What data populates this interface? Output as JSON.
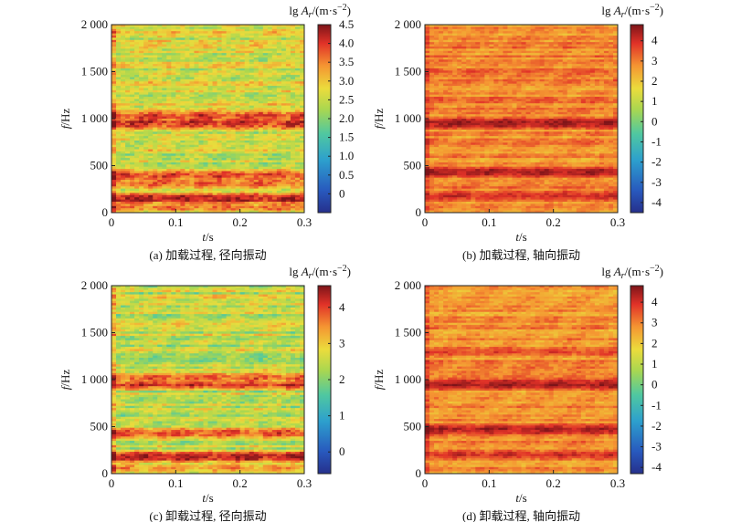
{
  "chart_data": [
    {
      "type": "heatmap",
      "caption": "(a) 加载过程, 径向振动",
      "xlabel": "t/s",
      "ylabel": "f/Hz",
      "xlim": [
        0,
        0.3
      ],
      "ylim": [
        0,
        2000
      ],
      "xticks": [
        "0",
        "0.1",
        "0.2",
        "0.3"
      ],
      "yticks": [
        "0",
        "500",
        "1 000",
        "1 500",
        "2 000"
      ],
      "colorbar_title": "lg Ar/(m·s⁻²)",
      "colorbar_range": [
        -0.5,
        4.5
      ],
      "colorbar_ticks": [
        "0",
        "0.5",
        "1.0",
        "1.5",
        "2.0",
        "2.5",
        "3.0",
        "3.5",
        "4.0",
        "4.5"
      ],
      "base_level": 2.6,
      "bands": [
        {
          "f": 950,
          "level": 4.1
        },
        {
          "f": 1030,
          "level": 3.9
        },
        {
          "f": 400,
          "level": 3.9
        },
        {
          "f": 310,
          "level": 3.7
        },
        {
          "f": 150,
          "level": 4.2
        },
        {
          "f": 60,
          "level": 3.6
        }
      ]
    },
    {
      "type": "heatmap",
      "caption": "(b) 加载过程, 轴向振动",
      "xlabel": "t/s",
      "ylabel": "f/Hz",
      "xlim": [
        0,
        0.3
      ],
      "ylim": [
        0,
        2000
      ],
      "xticks": [
        "0",
        "0.1",
        "0.2",
        "0.3"
      ],
      "yticks": [
        "0",
        "500",
        "1 000",
        "1 500",
        "2 000"
      ],
      "colorbar_title": "lg Ar/(m·s⁻²)",
      "colorbar_range": [
        -4.5,
        4.8
      ],
      "colorbar_ticks": [
        "-4",
        "-3",
        "-2",
        "-1",
        "0",
        "1",
        "2",
        "3",
        "4"
      ],
      "base_level": 2.9,
      "bands": [
        {
          "f": 950,
          "level": 4.4
        },
        {
          "f": 430,
          "level": 4.3
        },
        {
          "f": 180,
          "level": 4.0
        },
        {
          "f": 1500,
          "level": 3.4
        }
      ]
    },
    {
      "type": "heatmap",
      "caption": "(c) 卸载过程, 径向振动",
      "xlabel": "t/s",
      "ylabel": "f/Hz",
      "xlim": [
        0,
        0.3
      ],
      "ylim": [
        0,
        2000
      ],
      "xticks": [
        "0",
        "0.1",
        "0.2",
        "0.3"
      ],
      "yticks": [
        "0",
        "500",
        "1 000",
        "1 500",
        "2 000"
      ],
      "colorbar_title": "lg Ar/(m·s⁻²)",
      "colorbar_range": [
        -0.6,
        4.6
      ],
      "colorbar_ticks": [
        "0",
        "1",
        "2",
        "3",
        "4"
      ],
      "base_level": 2.5,
      "bands": [
        {
          "f": 950,
          "level": 4.0
        },
        {
          "f": 1020,
          "level": 3.8
        },
        {
          "f": 430,
          "level": 3.9
        },
        {
          "f": 180,
          "level": 4.3
        },
        {
          "f": 60,
          "level": 3.4
        }
      ]
    },
    {
      "type": "heatmap",
      "caption": "(d) 卸载过程, 轴向振动",
      "xlabel": "t/s",
      "ylabel": "f/Hz",
      "xlim": [
        0,
        0.3
      ],
      "ylim": [
        0,
        2000
      ],
      "xticks": [
        "0",
        "0.1",
        "0.2",
        "0.3"
      ],
      "yticks": [
        "0",
        "500",
        "1 000",
        "1 500",
        "2 000"
      ],
      "colorbar_title": "lg Ar/(m·s⁻²)",
      "colorbar_range": [
        -4.3,
        4.8
      ],
      "colorbar_ticks": [
        "-4",
        "-3",
        "-2",
        "-1",
        "0",
        "1",
        "2",
        "3",
        "4"
      ],
      "base_level": 2.8,
      "bands": [
        {
          "f": 950,
          "level": 4.4
        },
        {
          "f": 470,
          "level": 4.3
        },
        {
          "f": 200,
          "level": 3.9
        },
        {
          "f": 1300,
          "level": 3.6
        }
      ]
    }
  ]
}
